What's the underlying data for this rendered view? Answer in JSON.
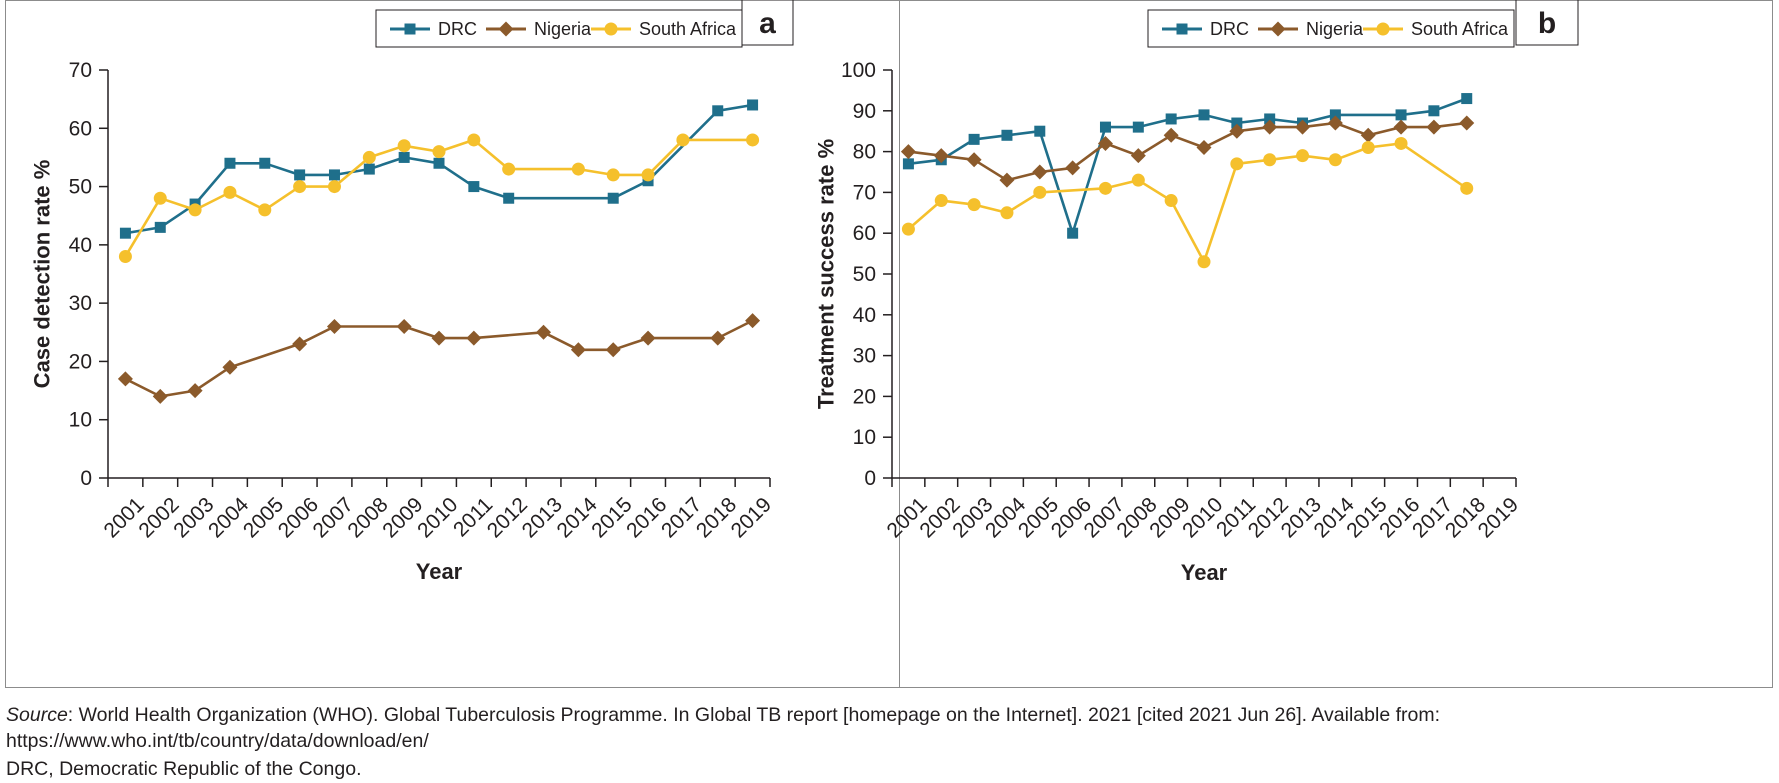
{
  "colors": {
    "DRC": "#1f6f8b",
    "Nigeria": "#8b5a2b",
    "South Africa": "#f5c02c"
  },
  "markers": {
    "DRC": "square",
    "Nigeria": "diamond",
    "South Africa": "circle"
  },
  "chart_data": [
    {
      "type": "line",
      "panel_label": "a",
      "xlabel": "Year",
      "ylabel": "Case detection rate %",
      "ylim": [
        0,
        70
      ],
      "yticks": [
        0,
        10,
        20,
        30,
        40,
        50,
        60,
        70
      ],
      "categories": [
        "2001",
        "2002",
        "2003",
        "2004",
        "2005",
        "2006",
        "2007",
        "2008",
        "2009",
        "2010",
        "2011",
        "2012",
        "2013",
        "2014",
        "2015",
        "2016",
        "2017",
        "2018",
        "2019"
      ],
      "legend_position": "top-right",
      "grid": false,
      "series": [
        {
          "name": "DRC",
          "values": [
            42,
            43,
            47,
            54,
            54,
            52,
            52,
            53,
            55,
            54,
            50,
            48,
            null,
            null,
            48,
            51,
            null,
            63,
            64
          ]
        },
        {
          "name": "Nigeria",
          "values": [
            17,
            14,
            15,
            19,
            null,
            23,
            26,
            null,
            26,
            24,
            24,
            null,
            25,
            22,
            22,
            24,
            null,
            24,
            27
          ]
        },
        {
          "name": "South Africa",
          "values": [
            38,
            48,
            46,
            49,
            46,
            50,
            50,
            55,
            57,
            56,
            58,
            53,
            null,
            53,
            52,
            52,
            58,
            null,
            58
          ]
        }
      ]
    },
    {
      "type": "line",
      "panel_label": "b",
      "xlabel": "Year",
      "ylabel": "Treatment success rate %",
      "ylim": [
        0,
        100
      ],
      "yticks": [
        0,
        10,
        20,
        30,
        40,
        50,
        60,
        70,
        80,
        90,
        100
      ],
      "categories": [
        "2001",
        "2002",
        "2003",
        "2004",
        "2005",
        "2006",
        "2007",
        "2008",
        "2009",
        "2010",
        "2011",
        "2012",
        "2013",
        "2014",
        "2015",
        "2016",
        "2017",
        "2018",
        "2019"
      ],
      "legend_position": "top-right",
      "grid": false,
      "series": [
        {
          "name": "DRC",
          "values": [
            77,
            78,
            83,
            84,
            85,
            60,
            86,
            86,
            88,
            89,
            87,
            88,
            87,
            89,
            null,
            89,
            90,
            93,
            null
          ]
        },
        {
          "name": "Nigeria",
          "values": [
            80,
            79,
            78,
            73,
            75,
            76,
            82,
            79,
            84,
            81,
            85,
            86,
            86,
            87,
            84,
            86,
            86,
            87,
            null
          ]
        },
        {
          "name": "South Africa",
          "values": [
            61,
            68,
            67,
            65,
            70,
            null,
            71,
            73,
            68,
            53,
            77,
            78,
            79,
            78,
            81,
            82,
            null,
            71,
            null
          ]
        }
      ]
    }
  ],
  "notes": {
    "source_label": "Source",
    "source_text": ": World Health Organization (WHO). Global Tuberculosis Programme. In Global TB report [homepage on the Internet]. 2021 [cited 2021 Jun 26]. Available from: https://www.who.int/tb/country/data/download/en/",
    "abbreviation": "DRC, Democratic Republic of the Congo."
  }
}
